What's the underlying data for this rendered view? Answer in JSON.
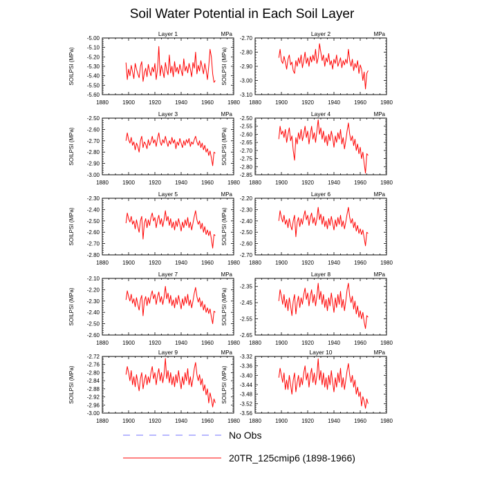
{
  "title": "Soil Water Potential in Each Soil Layer",
  "legend": [
    {
      "label": "No Obs",
      "color": "#7070ff",
      "style": "dashed"
    },
    {
      "label": "20TR_125cmip6 (1898-1966)",
      "color": "#ff0000",
      "style": "solid"
    }
  ],
  "colors": {
    "series": "#ff0000",
    "no_obs": "#7070ff",
    "axis": "#000000"
  },
  "chart_data": [
    {
      "type": "line",
      "title": "Layer 1",
      "units": "MPa",
      "ylabel": "SOILPSI  (MPa)",
      "xlim": [
        1880,
        1980
      ],
      "ylim": [
        -5.6,
        -5.0
      ],
      "ystep": 0.1,
      "x_start": 1898,
      "x_end": 1966,
      "series_name": "20TR_125cmip6 (1898-1966)",
      "values": [
        -5.26,
        -5.44,
        -5.33,
        -5.4,
        -5.29,
        -5.36,
        -5.43,
        -5.27,
        -5.33,
        -5.38,
        -5.42,
        -5.3,
        -5.25,
        -5.46,
        -5.37,
        -5.32,
        -5.41,
        -5.28,
        -5.35,
        -5.4,
        -5.31,
        -5.36,
        -5.27,
        -5.44,
        -5.33,
        -5.09,
        -5.4,
        -5.29,
        -5.35,
        -5.42,
        -5.26,
        -5.34,
        -5.39,
        -5.18,
        -5.37,
        -5.3,
        -5.41,
        -5.25,
        -5.36,
        -5.31,
        -5.38,
        -5.28,
        -5.34,
        -5.4,
        -5.22,
        -5.35,
        -5.3,
        -5.37,
        -5.27,
        -5.33,
        -5.41,
        -5.26,
        -5.32,
        -5.15,
        -5.38,
        -5.29,
        -5.35,
        -5.24,
        -5.31,
        -5.38,
        -5.27,
        -5.34,
        -5.44,
        -5.3,
        -5.12,
        -5.2,
        -5.38,
        -5.47,
        -5.45
      ]
    },
    {
      "type": "line",
      "title": "Layer 2",
      "units": "MPa",
      "ylabel": "SOILPSI  (MPa)",
      "xlim": [
        1880,
        1980
      ],
      "ylim": [
        -3.1,
        -2.7
      ],
      "ystep": 0.1,
      "x_start": 1898,
      "x_end": 1966,
      "series_name": "20TR_125cmip6 (1898-1966)",
      "values": [
        -2.84,
        -2.78,
        -2.86,
        -2.88,
        -2.83,
        -2.87,
        -2.92,
        -2.85,
        -2.82,
        -2.89,
        -2.87,
        -2.93,
        -2.95,
        -2.86,
        -2.9,
        -2.84,
        -2.88,
        -2.82,
        -2.91,
        -2.86,
        -2.8,
        -2.88,
        -2.84,
        -2.9,
        -2.83,
        -2.87,
        -2.82,
        -2.86,
        -2.78,
        -2.88,
        -2.84,
        -2.74,
        -2.8,
        -2.86,
        -2.82,
        -2.9,
        -2.84,
        -2.87,
        -2.81,
        -2.89,
        -2.86,
        -2.92,
        -2.85,
        -2.88,
        -2.82,
        -2.9,
        -2.87,
        -2.84,
        -2.91,
        -2.86,
        -2.89,
        -2.85,
        -2.88,
        -2.78,
        -2.86,
        -2.9,
        -2.85,
        -2.93,
        -2.88,
        -2.91,
        -2.86,
        -2.95,
        -2.89,
        -2.92,
        -3.0,
        -2.94,
        -3.06,
        -2.95,
        -2.93
      ]
    },
    {
      "type": "line",
      "title": "Layer 3",
      "units": "MPa",
      "ylabel": "SOILPSI  (MPa)",
      "xlim": [
        1880,
        1980
      ],
      "ylim": [
        -3.0,
        -2.5
      ],
      "ystep": 0.1,
      "x_start": 1898,
      "x_end": 1966,
      "series_name": "20TR_125cmip6 (1898-1966)",
      "values": [
        -2.7,
        -2.63,
        -2.69,
        -2.72,
        -2.67,
        -2.74,
        -2.71,
        -2.78,
        -2.72,
        -2.75,
        -2.8,
        -2.7,
        -2.66,
        -2.76,
        -2.71,
        -2.73,
        -2.77,
        -2.69,
        -2.74,
        -2.71,
        -2.66,
        -2.72,
        -2.69,
        -2.75,
        -2.68,
        -2.63,
        -2.71,
        -2.74,
        -2.69,
        -2.72,
        -2.66,
        -2.71,
        -2.75,
        -2.7,
        -2.73,
        -2.67,
        -2.72,
        -2.69,
        -2.77,
        -2.71,
        -2.74,
        -2.68,
        -2.72,
        -2.76,
        -2.7,
        -2.74,
        -2.69,
        -2.72,
        -2.68,
        -2.75,
        -2.71,
        -2.73,
        -2.69,
        -2.66,
        -2.71,
        -2.74,
        -2.7,
        -2.76,
        -2.72,
        -2.78,
        -2.74,
        -2.8,
        -2.77,
        -2.83,
        -2.79,
        -2.85,
        -2.92,
        -2.8,
        -2.81
      ]
    },
    {
      "type": "line",
      "title": "Layer 4",
      "units": "MPa",
      "ylabel": "SOILPSI  (MPa)",
      "xlim": [
        1880,
        1980
      ],
      "ylim": [
        -2.85,
        -2.5
      ],
      "ystep": 0.05,
      "x_start": 1898,
      "x_end": 1966,
      "series_name": "20TR_125cmip6 (1898-1966)",
      "values": [
        -2.63,
        -2.55,
        -2.6,
        -2.58,
        -2.62,
        -2.57,
        -2.65,
        -2.6,
        -2.56,
        -2.64,
        -2.61,
        -2.7,
        -2.76,
        -2.62,
        -2.66,
        -2.59,
        -2.63,
        -2.57,
        -2.64,
        -2.6,
        -2.55,
        -2.62,
        -2.58,
        -2.66,
        -2.6,
        -2.55,
        -2.63,
        -2.59,
        -2.65,
        -2.58,
        -2.51,
        -2.6,
        -2.56,
        -2.63,
        -2.58,
        -2.65,
        -2.61,
        -2.67,
        -2.6,
        -2.64,
        -2.58,
        -2.62,
        -2.68,
        -2.61,
        -2.65,
        -2.59,
        -2.63,
        -2.57,
        -2.66,
        -2.62,
        -2.69,
        -2.64,
        -2.58,
        -2.53,
        -2.6,
        -2.64,
        -2.61,
        -2.67,
        -2.63,
        -2.7,
        -2.66,
        -2.72,
        -2.68,
        -2.75,
        -2.71,
        -2.78,
        -2.84,
        -2.72,
        -2.73
      ]
    },
    {
      "type": "line",
      "title": "Layer 5",
      "units": "MPa",
      "ylabel": "SOILPSI  (MPa)",
      "xlim": [
        1880,
        1980
      ],
      "ylim": [
        -2.8,
        -2.3
      ],
      "ystep": 0.1,
      "x_start": 1898,
      "x_end": 1966,
      "series_name": "20TR_125cmip6 (1898-1966)",
      "values": [
        -2.52,
        -2.43,
        -2.48,
        -2.51,
        -2.46,
        -2.53,
        -2.5,
        -2.57,
        -2.49,
        -2.55,
        -2.6,
        -2.5,
        -2.46,
        -2.66,
        -2.52,
        -2.48,
        -2.56,
        -2.49,
        -2.54,
        -2.47,
        -2.43,
        -2.5,
        -2.47,
        -2.56,
        -2.49,
        -2.45,
        -2.53,
        -2.48,
        -2.55,
        -2.49,
        -2.41,
        -2.5,
        -2.46,
        -2.54,
        -2.48,
        -2.56,
        -2.51,
        -2.58,
        -2.5,
        -2.55,
        -2.48,
        -2.53,
        -2.59,
        -2.51,
        -2.56,
        -2.49,
        -2.54,
        -2.47,
        -2.56,
        -2.51,
        -2.58,
        -2.52,
        -2.46,
        -2.41,
        -2.49,
        -2.53,
        -2.5,
        -2.57,
        -2.52,
        -2.6,
        -2.55,
        -2.62,
        -2.58,
        -2.63,
        -2.59,
        -2.66,
        -2.74,
        -2.62,
        -2.63
      ]
    },
    {
      "type": "line",
      "title": "Layer 6",
      "units": "MPa",
      "ylabel": "SOILPSI  (MPa)",
      "xlim": [
        1880,
        1980
      ],
      "ylim": [
        -2.7,
        -2.2
      ],
      "ystep": 0.1,
      "x_start": 1898,
      "x_end": 1966,
      "series_name": "20TR_125cmip6 (1898-1966)",
      "values": [
        -2.4,
        -2.31,
        -2.37,
        -2.41,
        -2.35,
        -2.43,
        -2.39,
        -2.46,
        -2.38,
        -2.44,
        -2.48,
        -2.4,
        -2.35,
        -2.54,
        -2.41,
        -2.37,
        -2.45,
        -2.38,
        -2.43,
        -2.36,
        -2.31,
        -2.39,
        -2.35,
        -2.44,
        -2.37,
        -2.33,
        -2.42,
        -2.37,
        -2.44,
        -2.38,
        -2.28,
        -2.39,
        -2.34,
        -2.43,
        -2.36,
        -2.45,
        -2.4,
        -2.47,
        -2.38,
        -2.44,
        -2.36,
        -2.42,
        -2.48,
        -2.39,
        -2.45,
        -2.37,
        -2.43,
        -2.35,
        -2.45,
        -2.4,
        -2.47,
        -2.41,
        -2.34,
        -2.28,
        -2.37,
        -2.42,
        -2.38,
        -2.46,
        -2.41,
        -2.49,
        -2.44,
        -2.51,
        -2.47,
        -2.52,
        -2.48,
        -2.55,
        -2.62,
        -2.5,
        -2.51
      ]
    },
    {
      "type": "line",
      "title": "Layer 7",
      "units": "MPa",
      "ylabel": "SOILPSI  (MPa)",
      "xlim": [
        1880,
        1980
      ],
      "ylim": [
        -2.6,
        -2.1
      ],
      "ystep": 0.1,
      "x_start": 1898,
      "x_end": 1966,
      "series_name": "20TR_125cmip6 (1898-1966)",
      "values": [
        -2.29,
        -2.21,
        -2.26,
        -2.3,
        -2.24,
        -2.32,
        -2.28,
        -2.35,
        -2.27,
        -2.33,
        -2.38,
        -2.29,
        -2.25,
        -2.43,
        -2.3,
        -2.26,
        -2.34,
        -2.27,
        -2.32,
        -2.25,
        -2.21,
        -2.28,
        -2.24,
        -2.33,
        -2.26,
        -2.22,
        -2.31,
        -2.26,
        -2.33,
        -2.27,
        -2.17,
        -2.28,
        -2.23,
        -2.32,
        -2.25,
        -2.34,
        -2.29,
        -2.36,
        -2.27,
        -2.33,
        -2.25,
        -2.31,
        -2.37,
        -2.28,
        -2.34,
        -2.26,
        -2.32,
        -2.24,
        -2.34,
        -2.29,
        -2.36,
        -2.3,
        -2.23,
        -2.18,
        -2.26,
        -2.31,
        -2.27,
        -2.35,
        -2.3,
        -2.38,
        -2.33,
        -2.4,
        -2.36,
        -2.41,
        -2.37,
        -2.44,
        -2.5,
        -2.39,
        -2.4
      ]
    },
    {
      "type": "line",
      "title": "Layer 8",
      "units": "MPa",
      "ylabel": "SOILPSI  (MPa)",
      "xlim": [
        1880,
        1980
      ],
      "ylim": [
        -2.65,
        -2.3
      ],
      "ystep": 0.1,
      "x_start": 1898,
      "x_end": 1966,
      "series_name": "20TR_125cmip6 (1898-1966)",
      "values": [
        -2.44,
        -2.37,
        -2.41,
        -2.46,
        -2.4,
        -2.48,
        -2.43,
        -2.5,
        -2.42,
        -2.47,
        -2.53,
        -2.44,
        -2.4,
        -2.52,
        -2.45,
        -2.41,
        -2.48,
        -2.42,
        -2.46,
        -2.4,
        -2.36,
        -2.43,
        -2.39,
        -2.47,
        -2.41,
        -2.37,
        -2.45,
        -2.4,
        -2.47,
        -2.41,
        -2.33,
        -2.43,
        -2.38,
        -2.46,
        -2.4,
        -2.48,
        -2.43,
        -2.5,
        -2.42,
        -2.47,
        -2.39,
        -2.45,
        -2.51,
        -2.42,
        -2.48,
        -2.4,
        -2.46,
        -2.38,
        -2.48,
        -2.43,
        -2.5,
        -2.44,
        -2.37,
        -2.33,
        -2.41,
        -2.45,
        -2.41,
        -2.49,
        -2.44,
        -2.52,
        -2.47,
        -2.54,
        -2.5,
        -2.55,
        -2.51,
        -2.57,
        -2.61,
        -2.53,
        -2.54
      ]
    },
    {
      "type": "line",
      "title": "Layer 9",
      "units": "MPa",
      "ylabel": "SOILPSI  (MPa)",
      "xlim": [
        1880,
        1980
      ],
      "ylim": [
        -3.0,
        -2.72
      ],
      "ystep": 0.04,
      "x_start": 1898,
      "x_end": 1966,
      "series_name": "20TR_125cmip6 (1898-1966)",
      "values": [
        -2.81,
        -2.77,
        -2.8,
        -2.84,
        -2.79,
        -2.86,
        -2.82,
        -2.87,
        -2.81,
        -2.85,
        -2.89,
        -2.83,
        -2.8,
        -2.88,
        -2.84,
        -2.81,
        -2.86,
        -2.82,
        -2.85,
        -2.8,
        -2.77,
        -2.83,
        -2.8,
        -2.86,
        -2.81,
        -2.78,
        -2.84,
        -2.8,
        -2.85,
        -2.81,
        -2.73,
        -2.83,
        -2.79,
        -2.85,
        -2.8,
        -2.86,
        -2.82,
        -2.87,
        -2.81,
        -2.85,
        -2.79,
        -2.84,
        -2.88,
        -2.82,
        -2.86,
        -2.8,
        -2.84,
        -2.78,
        -2.86,
        -2.82,
        -2.87,
        -2.83,
        -2.78,
        -2.75,
        -2.81,
        -2.84,
        -2.81,
        -2.86,
        -2.83,
        -2.89,
        -2.86,
        -2.91,
        -2.88,
        -2.95,
        -2.9,
        -2.93,
        -2.97,
        -2.93,
        -2.95
      ]
    },
    {
      "type": "line",
      "title": "Layer 10",
      "units": "MPa",
      "ylabel": "SOILPSI  (MPa)",
      "xlim": [
        1880,
        1980
      ],
      "ylim": [
        -3.56,
        -3.32
      ],
      "ystep": 0.04,
      "x_start": 1898,
      "x_end": 1966,
      "series_name": "20TR_125cmip6 (1898-1966)",
      "values": [
        -3.41,
        -3.37,
        -3.4,
        -3.43,
        -3.39,
        -3.46,
        -3.42,
        -3.46,
        -3.4,
        -3.44,
        -3.48,
        -3.42,
        -3.39,
        -3.47,
        -3.43,
        -3.4,
        -3.45,
        -3.41,
        -3.44,
        -3.39,
        -3.36,
        -3.42,
        -3.39,
        -3.45,
        -3.4,
        -3.37,
        -3.43,
        -3.39,
        -3.44,
        -3.4,
        -3.33,
        -3.42,
        -3.38,
        -3.44,
        -3.39,
        -3.45,
        -3.41,
        -3.46,
        -3.4,
        -3.44,
        -3.38,
        -3.43,
        -3.47,
        -3.41,
        -3.45,
        -3.39,
        -3.43,
        -3.37,
        -3.45,
        -3.41,
        -3.46,
        -3.42,
        -3.38,
        -3.35,
        -3.4,
        -3.43,
        -3.4,
        -3.45,
        -3.42,
        -3.48,
        -3.45,
        -3.49,
        -3.47,
        -3.53,
        -3.49,
        -3.51,
        -3.54,
        -3.5,
        -3.52
      ]
    }
  ]
}
